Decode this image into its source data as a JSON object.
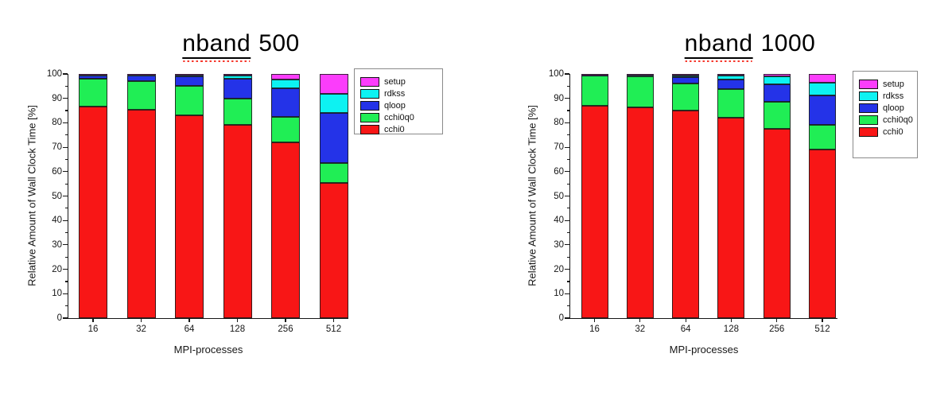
{
  "page": {
    "background": "#ffffff"
  },
  "colors": {
    "setup": "#fb3dfb",
    "rdkss": "#0df2f2",
    "qloop": "#2433e8",
    "cchi0q0": "#20ee55",
    "cchi0": "#f81616",
    "axis": "#161616",
    "bar_border": "#191919"
  },
  "chart_data": [
    {
      "type": "bar",
      "stacked": true,
      "title": "nband 500",
      "title_word": "nband",
      "title_suffix": "500",
      "xlabel": "MPI-processes",
      "ylabel": "Relative Amount of Wall Clock Time [%]",
      "ylim": [
        0,
        100
      ],
      "yticks": [
        0,
        10,
        20,
        30,
        40,
        50,
        60,
        70,
        80,
        90,
        100
      ],
      "grid": false,
      "categories": [
        "16",
        "32",
        "64",
        "128",
        "256",
        "512"
      ],
      "stack_order": "bottom-to-top",
      "series": [
        {
          "name": "cchi0",
          "color_key": "cchi0",
          "values": [
            86.5,
            85.3,
            83.0,
            79.0,
            72.0,
            55.5
          ]
        },
        {
          "name": "cchi0q0",
          "color_key": "cchi0q0",
          "values": [
            11.5,
            11.7,
            12.0,
            11.0,
            10.5,
            8.0
          ]
        },
        {
          "name": "qloop",
          "color_key": "qloop",
          "values": [
            1.5,
            2.5,
            4.0,
            8.0,
            11.5,
            20.5
          ]
        },
        {
          "name": "rdkss",
          "color_key": "rdkss",
          "values": [
            0.2,
            0.2,
            0.6,
            1.2,
            3.7,
            8.0
          ]
        },
        {
          "name": "setup",
          "color_key": "setup",
          "values": [
            0.3,
            0.3,
            0.4,
            0.8,
            2.3,
            8.0
          ]
        }
      ],
      "legend": [
        "setup",
        "rdkss",
        "qloop",
        "cchi0q0",
        "cchi0"
      ],
      "legend_position": "outside-right-top"
    },
    {
      "type": "bar",
      "stacked": true,
      "title": "nband 1000",
      "title_word": "nband",
      "title_suffix": "1000",
      "xlabel": "MPI-processes",
      "ylabel": "Relative Amount of Wall Clock Time [%]",
      "ylim": [
        0,
        100
      ],
      "yticks": [
        0,
        10,
        20,
        30,
        40,
        50,
        60,
        70,
        80,
        90,
        100
      ],
      "grid": false,
      "categories": [
        "16",
        "32",
        "64",
        "128",
        "256",
        "512"
      ],
      "stack_order": "bottom-to-top",
      "series": [
        {
          "name": "cchi0",
          "color_key": "cchi0",
          "values": [
            87.0,
            86.3,
            85.0,
            82.0,
            77.5,
            69.0
          ]
        },
        {
          "name": "cchi0q0",
          "color_key": "cchi0q0",
          "values": [
            12.3,
            12.6,
            11.0,
            11.8,
            11.0,
            10.3
          ]
        },
        {
          "name": "qloop",
          "color_key": "qloop",
          "values": [
            0.4,
            0.7,
            2.8,
            3.8,
            7.3,
            11.8
          ]
        },
        {
          "name": "rdkss",
          "color_key": "rdkss",
          "values": [
            0.2,
            0.2,
            0.7,
            1.7,
            3.2,
            5.4
          ]
        },
        {
          "name": "setup",
          "color_key": "setup",
          "values": [
            0.1,
            0.2,
            0.5,
            0.7,
            1.0,
            3.5
          ]
        }
      ],
      "legend": [
        "setup",
        "rdkss",
        "qloop",
        "cchi0q0",
        "cchi0"
      ],
      "legend_position": "outside-right-top"
    }
  ]
}
